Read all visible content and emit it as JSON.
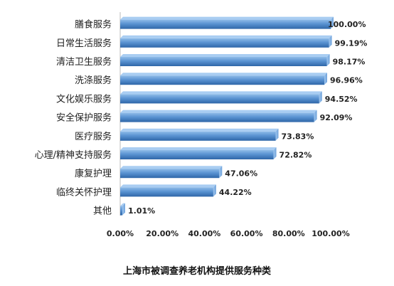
{
  "chart_data": {
    "type": "bar",
    "orientation": "horizontal",
    "title": "上海市被调查养老机构提供服务种类",
    "categories": [
      "膳食服务",
      "日常生活服务",
      "清洁卫生服务",
      "洗涤服务",
      "文化娱乐服务",
      "安全保护服务",
      "医疗服务",
      "心理/精神支持服务",
      "康复护理",
      "临终关怀护理",
      "其他"
    ],
    "values": [
      100.0,
      99.19,
      98.17,
      96.96,
      94.52,
      92.09,
      73.83,
      72.82,
      47.06,
      44.22,
      1.01
    ],
    "value_labels": [
      "100.00%",
      "99.19%",
      "98.17%",
      "96.96%",
      "94.52%",
      "92.09%",
      "73.83%",
      "72.82%",
      "47.06%",
      "44.22%",
      "1.01%"
    ],
    "xlim": [
      0,
      100
    ],
    "x_ticks": [
      0,
      20,
      40,
      60,
      80,
      100
    ],
    "x_tick_labels": [
      "0.00%",
      "20.00%",
      "40.00%",
      "60.00%",
      "80.00%",
      "100.00%"
    ],
    "grid": false,
    "bar_color": "#4a86c8"
  }
}
